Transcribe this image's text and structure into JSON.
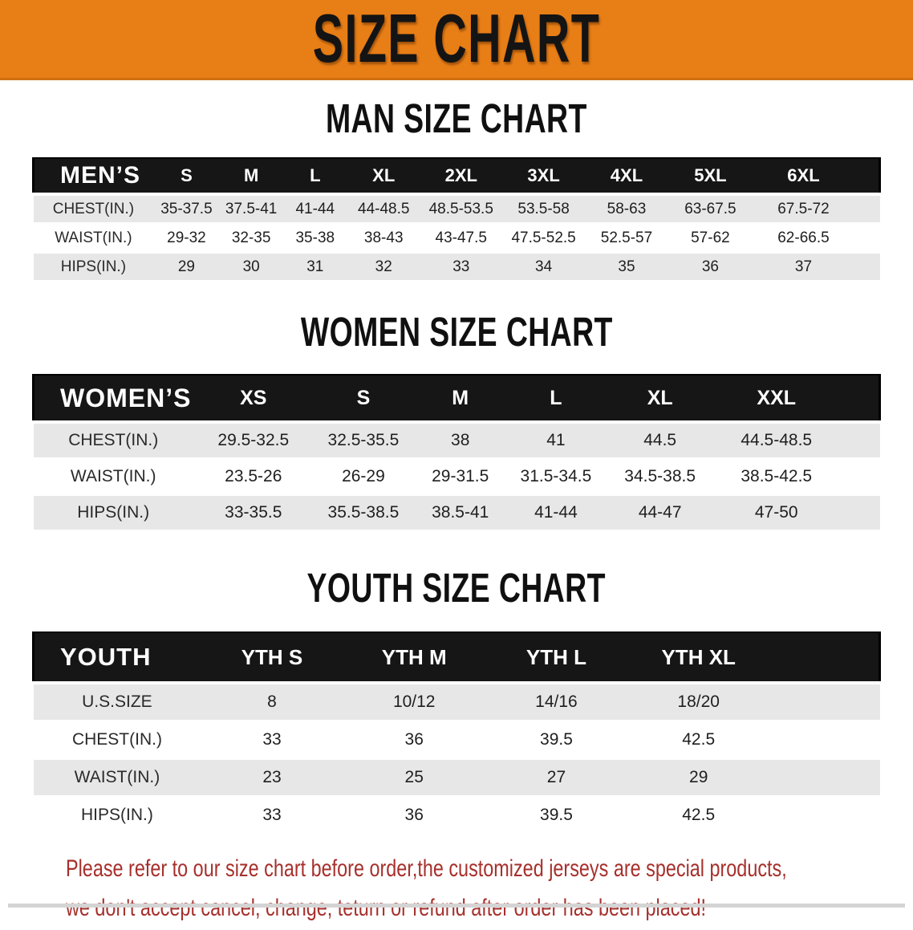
{
  "banner": {
    "title": "SIZE CHART",
    "bg_color": "#e87e16"
  },
  "sections": [
    {
      "id": "men",
      "title": "MAN SIZE CHART",
      "header_label": "MEN’S",
      "columns": [
        "S",
        "M",
        "L",
        "XL",
        "2XL",
        "3XL",
        "4XL",
        "5XL",
        "6XL"
      ],
      "rows": [
        {
          "label": "CHEST(IN.)",
          "values": [
            "35-37.5",
            "37.5-41",
            "41-44",
            "44-48.5",
            "48.5-53.5",
            "53.5-58",
            "58-63",
            "63-67.5",
            "67.5-72"
          ]
        },
        {
          "label": "WAIST(IN.)",
          "values": [
            "29-32",
            "32-35",
            "35-38",
            "38-43",
            "43-47.5",
            "47.5-52.5",
            "52.5-57",
            "57-62",
            "62-66.5"
          ]
        },
        {
          "label": "HIPS(IN.)",
          "values": [
            "29",
            "30",
            "31",
            "32",
            "33",
            "34",
            "35",
            "36",
            "37"
          ]
        }
      ]
    },
    {
      "id": "women",
      "title": "WOMEN SIZE CHART",
      "header_label": "WOMEN’S",
      "columns": [
        "XS",
        "S",
        "M",
        "L",
        "XL",
        "XXL"
      ],
      "rows": [
        {
          "label": "CHEST(IN.)",
          "values": [
            "29.5-32.5",
            "32.5-35.5",
            "38",
            "41",
            "44.5",
            "44.5-48.5"
          ]
        },
        {
          "label": "WAIST(IN.)",
          "values": [
            "23.5-26",
            "26-29",
            "29-31.5",
            "31.5-34.5",
            "34.5-38.5",
            "38.5-42.5"
          ]
        },
        {
          "label": "HIPS(IN.)",
          "values": [
            "33-35.5",
            "35.5-38.5",
            "38.5-41",
            "41-44",
            "44-47",
            "47-50"
          ]
        }
      ]
    },
    {
      "id": "youth",
      "title": "YOUTH SIZE CHART",
      "header_label": "YOUTH",
      "columns": [
        "YTH S",
        "YTH M",
        "YTH L",
        "YTH XL"
      ],
      "rows": [
        {
          "label": "U.S.SIZE",
          "values": [
            "8",
            "10/12",
            "14/16",
            "18/20"
          ]
        },
        {
          "label": "CHEST(IN.)",
          "values": [
            "33",
            "36",
            "39.5",
            "42.5"
          ]
        },
        {
          "label": "WAIST(IN.)",
          "values": [
            "23",
            "25",
            "27",
            "29"
          ]
        },
        {
          "label": "HIPS(IN.)",
          "values": [
            "33",
            "36",
            "39.5",
            "42.5"
          ]
        }
      ]
    }
  ],
  "disclaimer": {
    "line1": "Please refer to our size chart before order,the customized jerseys are special products,",
    "line2": "we don't accept cancel, change, teturn or refund after order has been placed!",
    "color": "#a6302c"
  },
  "colors": {
    "banner_bg": "#e87e16",
    "header_bar": "#161616",
    "row_stripe": "#e7e7e7"
  }
}
